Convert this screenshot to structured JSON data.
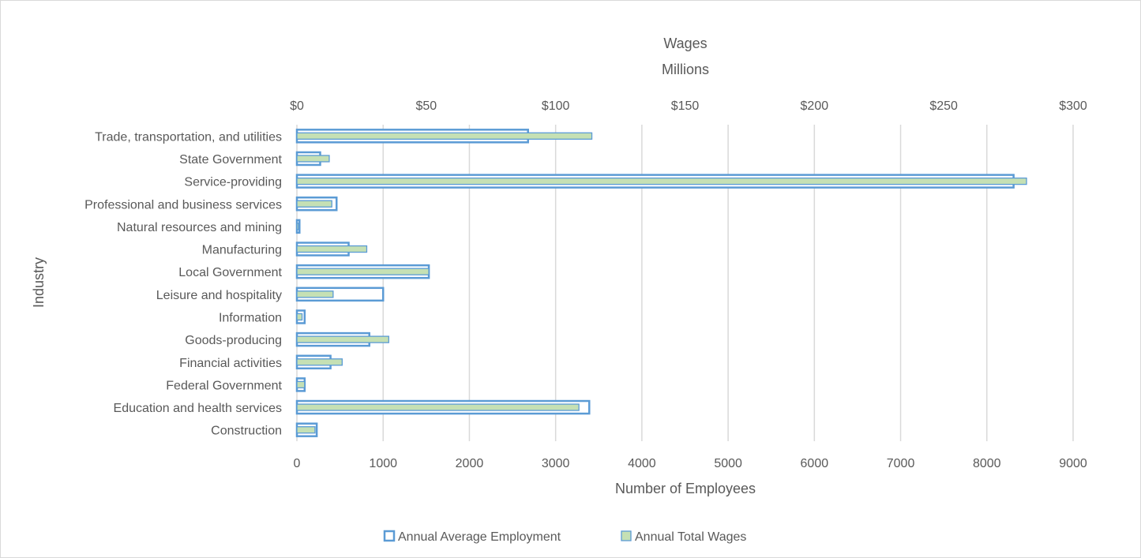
{
  "chart_data": {
    "type": "bar",
    "orientation": "horizontal",
    "categories": [
      "Trade, transportation, and utilities",
      "State Government",
      "Service-providing",
      "Professional and business services",
      "Natural resources and mining",
      "Manufacturing",
      "Local Government",
      "Leisure and hospitality",
      "Information",
      "Goods-producing",
      "Financial activities",
      "Federal Government",
      "Education and health services",
      "Construction"
    ],
    "series": [
      {
        "name": "Annual Average Employment",
        "axis": "bottom",
        "color": "#5b9bd5",
        "values": [
          2680,
          270,
          8310,
          460,
          30,
          600,
          1530,
          1000,
          90,
          840,
          390,
          90,
          3390,
          230
        ]
      },
      {
        "name": "Annual Total Wages",
        "axis": "top",
        "color": "#c5e0b4",
        "values": [
          114,
          12.5,
          282,
          13.5,
          0.5,
          27,
          51,
          14,
          2,
          35.5,
          17.5,
          3,
          109,
          7
        ]
      }
    ],
    "title": "",
    "ylabel": "Industry",
    "xlabel": "Number of Employees",
    "x_top_label": "Wages",
    "x_top_units": "Millions",
    "xlim": [
      0,
      9000
    ],
    "x_ticks": [
      "0",
      "1000",
      "2000",
      "3000",
      "4000",
      "5000",
      "6000",
      "7000",
      "8000",
      "9000"
    ],
    "x_top_lim": [
      0,
      300
    ],
    "x_top_ticks": [
      "$0",
      "$50",
      "$100",
      "$150",
      "$200",
      "$250",
      "$300"
    ],
    "grid": "vertical",
    "legend_position": "bottom"
  }
}
